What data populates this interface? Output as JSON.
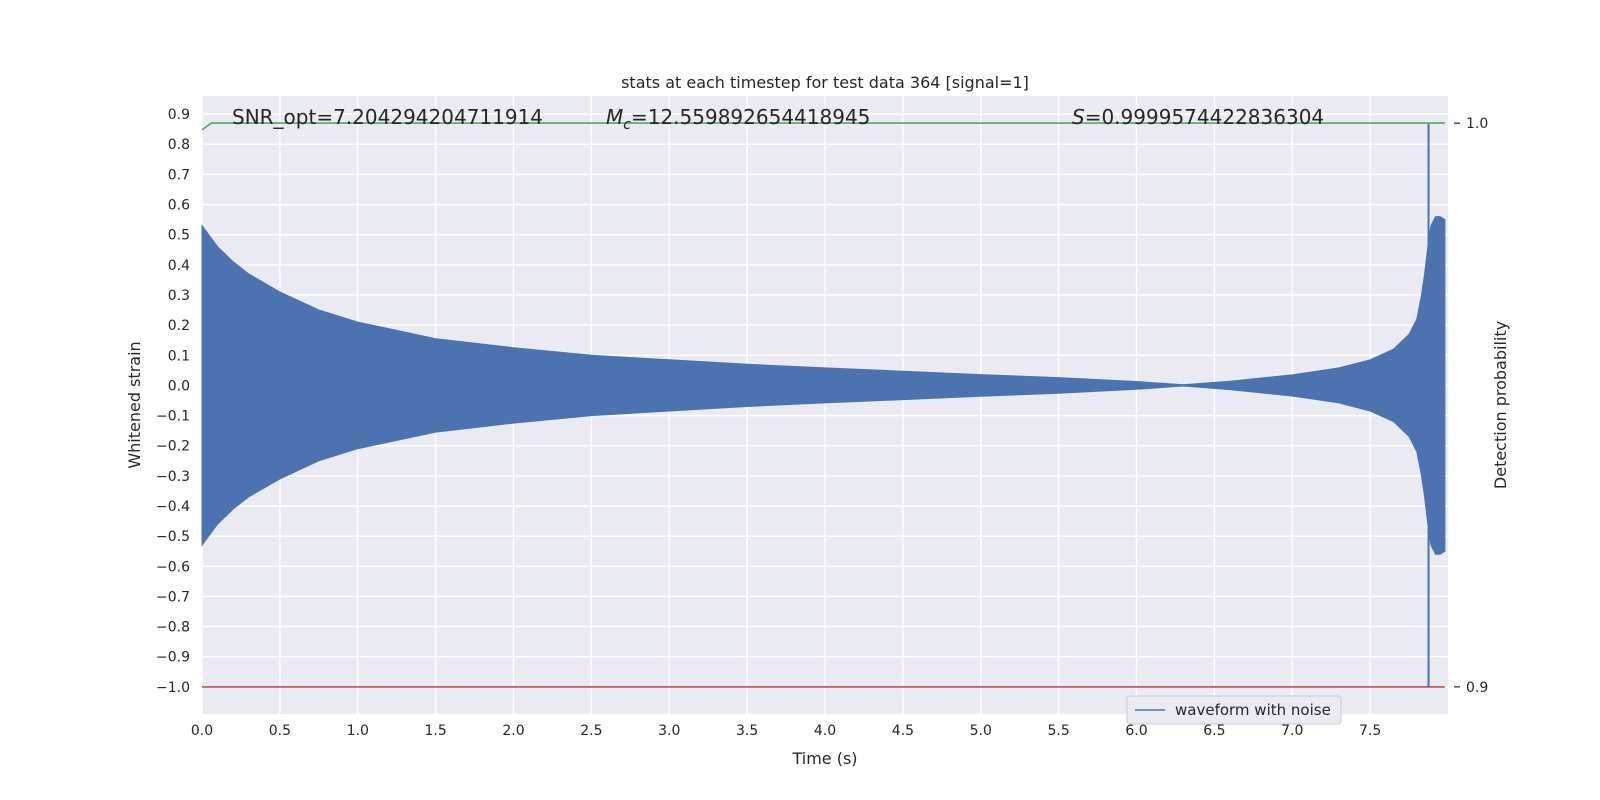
{
  "chart_data": {
    "type": "line",
    "title": "stats at each timestep for test data 364 [signal=1]",
    "xlabel": "Time (s)",
    "ylabel": "Whitened strain",
    "ylabel_right": "Detection probability",
    "xlim": [
      0,
      8.0
    ],
    "ylim": [
      -1.09,
      0.96
    ],
    "ylim_right": [
      0.9,
      1.0
    ],
    "x_ticks": [
      "0.0",
      "0.5",
      "1.0",
      "1.5",
      "2.0",
      "2.5",
      "3.0",
      "3.5",
      "4.0",
      "4.5",
      "5.0",
      "5.5",
      "6.0",
      "6.5",
      "7.0",
      "7.5"
    ],
    "y_ticks": [
      "0.9",
      "0.8",
      "0.7",
      "0.6",
      "0.5",
      "0.4",
      "0.3",
      "0.2",
      "0.1",
      "0.0",
      "−0.1",
      "−0.2",
      "−0.3",
      "−0.4",
      "−0.5",
      "−0.6",
      "−0.7",
      "−0.8",
      "−0.9",
      "−1.0"
    ],
    "y_ticks_right": [
      "1.0",
      "0.9"
    ],
    "annotations": {
      "snr": "SNR_opt=7.204294204711914",
      "mc_symbol": "M",
      "mc_sub": "c",
      "mc_value": "=12.559892654418945",
      "s_symbol": "S",
      "s_value": "=0.9999574422836304"
    },
    "legend": {
      "label": "waveform with noise",
      "placement": "lower-right"
    },
    "grid": true,
    "series": [
      {
        "name": "waveform with noise",
        "color": "#4c72b0",
        "envelope": {
          "t": [
            0,
            0.1,
            0.2,
            0.3,
            0.5,
            0.75,
            1.0,
            1.5,
            2.0,
            2.5,
            3.0,
            3.5,
            4.0,
            4.5,
            5.0,
            5.5,
            6.0,
            6.3,
            6.6,
            7.0,
            7.3,
            7.5,
            7.65,
            7.75,
            7.8,
            7.83,
            7.85,
            7.87,
            7.89,
            7.92,
            7.95,
            7.98
          ],
          "upper": [
            0.53,
            0.46,
            0.41,
            0.37,
            0.31,
            0.25,
            0.21,
            0.155,
            0.125,
            0.1,
            0.085,
            0.07,
            0.058,
            0.047,
            0.036,
            0.026,
            0.013,
            0.002,
            0.014,
            0.035,
            0.058,
            0.085,
            0.12,
            0.17,
            0.22,
            0.3,
            0.37,
            0.46,
            0.53,
            0.56,
            0.56,
            0.55
          ],
          "lower": [
            -0.53,
            -0.46,
            -0.41,
            -0.37,
            -0.31,
            -0.25,
            -0.21,
            -0.155,
            -0.125,
            -0.1,
            -0.085,
            -0.07,
            -0.058,
            -0.047,
            -0.036,
            -0.026,
            -0.013,
            -0.002,
            -0.014,
            -0.035,
            -0.058,
            -0.085,
            -0.12,
            -0.17,
            -0.22,
            -0.3,
            -0.37,
            -0.46,
            -0.53,
            -0.56,
            -0.56,
            -0.55
          ]
        },
        "spike": {
          "t": 7.875,
          "y_top": 0.87,
          "y_bottom": -1.0
        }
      },
      {
        "color": "#55a868",
        "axis": "right",
        "x": [
          0,
          0.06,
          7.875,
          7.98
        ],
        "y": [
          0.9988,
          1.0,
          1.0,
          1.0
        ]
      },
      {
        "color": "#c44e52",
        "x": [
          0,
          7.98
        ],
        "y": [
          -1.0,
          -1.0
        ]
      }
    ]
  }
}
